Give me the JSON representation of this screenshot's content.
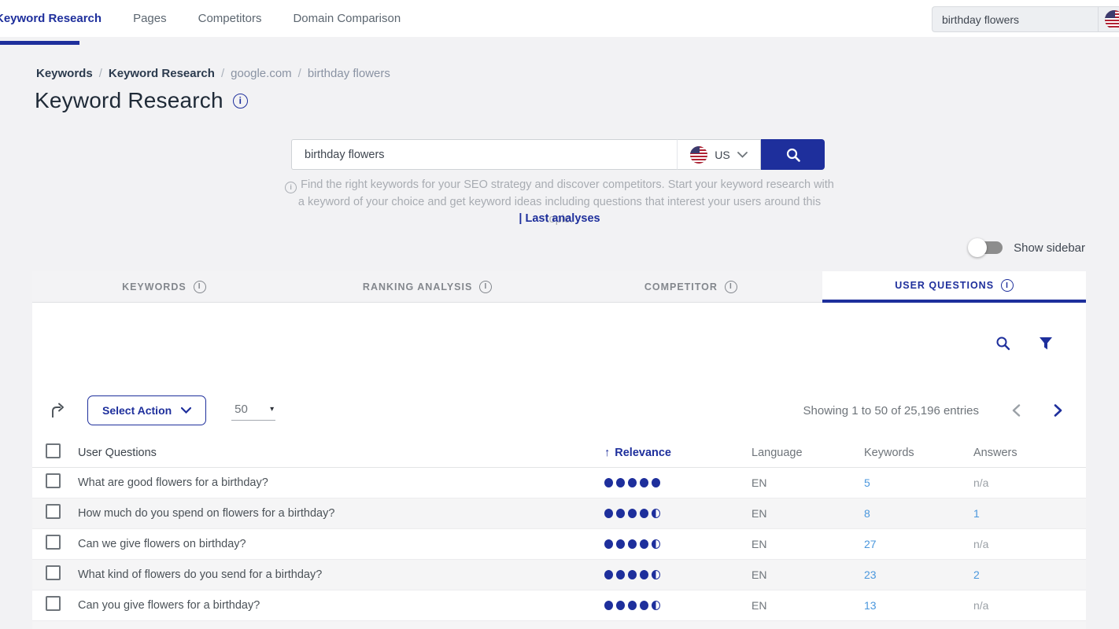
{
  "nav": {
    "items": [
      {
        "label": "Keyword Research",
        "active": true
      },
      {
        "label": "Pages",
        "active": false
      },
      {
        "label": "Competitors",
        "active": false
      },
      {
        "label": "Domain Comparison",
        "active": false
      }
    ],
    "search_value": "birthday flowers"
  },
  "breadcrumb": {
    "separator": "/",
    "items": [
      "Keywords",
      "Keyword Research",
      "google.com",
      "birthday flowers"
    ]
  },
  "page": {
    "title": "Keyword Research"
  },
  "search_panel": {
    "input_value": "birthday flowers",
    "country_code": "US",
    "help_text": "Find the right keywords for your SEO strategy and discover competitors. Start your keyword research with a keyword of your choice and get keyword ideas including questions that interest your users around this topic.",
    "last_analyses_label": "| Last analyses"
  },
  "sidebar_toggle": {
    "label": "Show sidebar",
    "state": "off"
  },
  "tabs": [
    {
      "label": "Keywords",
      "active": false
    },
    {
      "label": "Ranking Analysis",
      "active": false
    },
    {
      "label": "Competitor",
      "active": false
    },
    {
      "label": "User Questions",
      "active": true
    }
  ],
  "toolbar": {
    "select_action_label": "Select Action",
    "page_size": "50",
    "showing_text": "Showing 1 to 50 of 25,196 entries"
  },
  "table": {
    "columns": {
      "questions": "User Questions",
      "relevance": "Relevance",
      "language": "Language",
      "keywords": "Keywords",
      "answers": "Answers"
    },
    "sort": {
      "column": "Relevance",
      "direction": "asc"
    },
    "rows": [
      {
        "question": "What are good flowers for a birthday?",
        "relevance": 5,
        "language": "EN",
        "keywords": "5",
        "answers": "n/a"
      },
      {
        "question": "How much do you spend on flowers for a birthday?",
        "relevance": 4.5,
        "language": "EN",
        "keywords": "8",
        "answers": "1"
      },
      {
        "question": "Can we give flowers on birthday?",
        "relevance": 4.5,
        "language": "EN",
        "keywords": "27",
        "answers": "n/a"
      },
      {
        "question": "What kind of flowers do you send for a birthday?",
        "relevance": 4.5,
        "language": "EN",
        "keywords": "23",
        "answers": "2"
      },
      {
        "question": "Can you give flowers for a birthday?",
        "relevance": 4.5,
        "language": "EN",
        "keywords": "13",
        "answers": "n/a"
      }
    ]
  },
  "colors": {
    "accent": "#1e2f9c",
    "link": "#4a97dd",
    "muted": "#9aa0a6"
  }
}
